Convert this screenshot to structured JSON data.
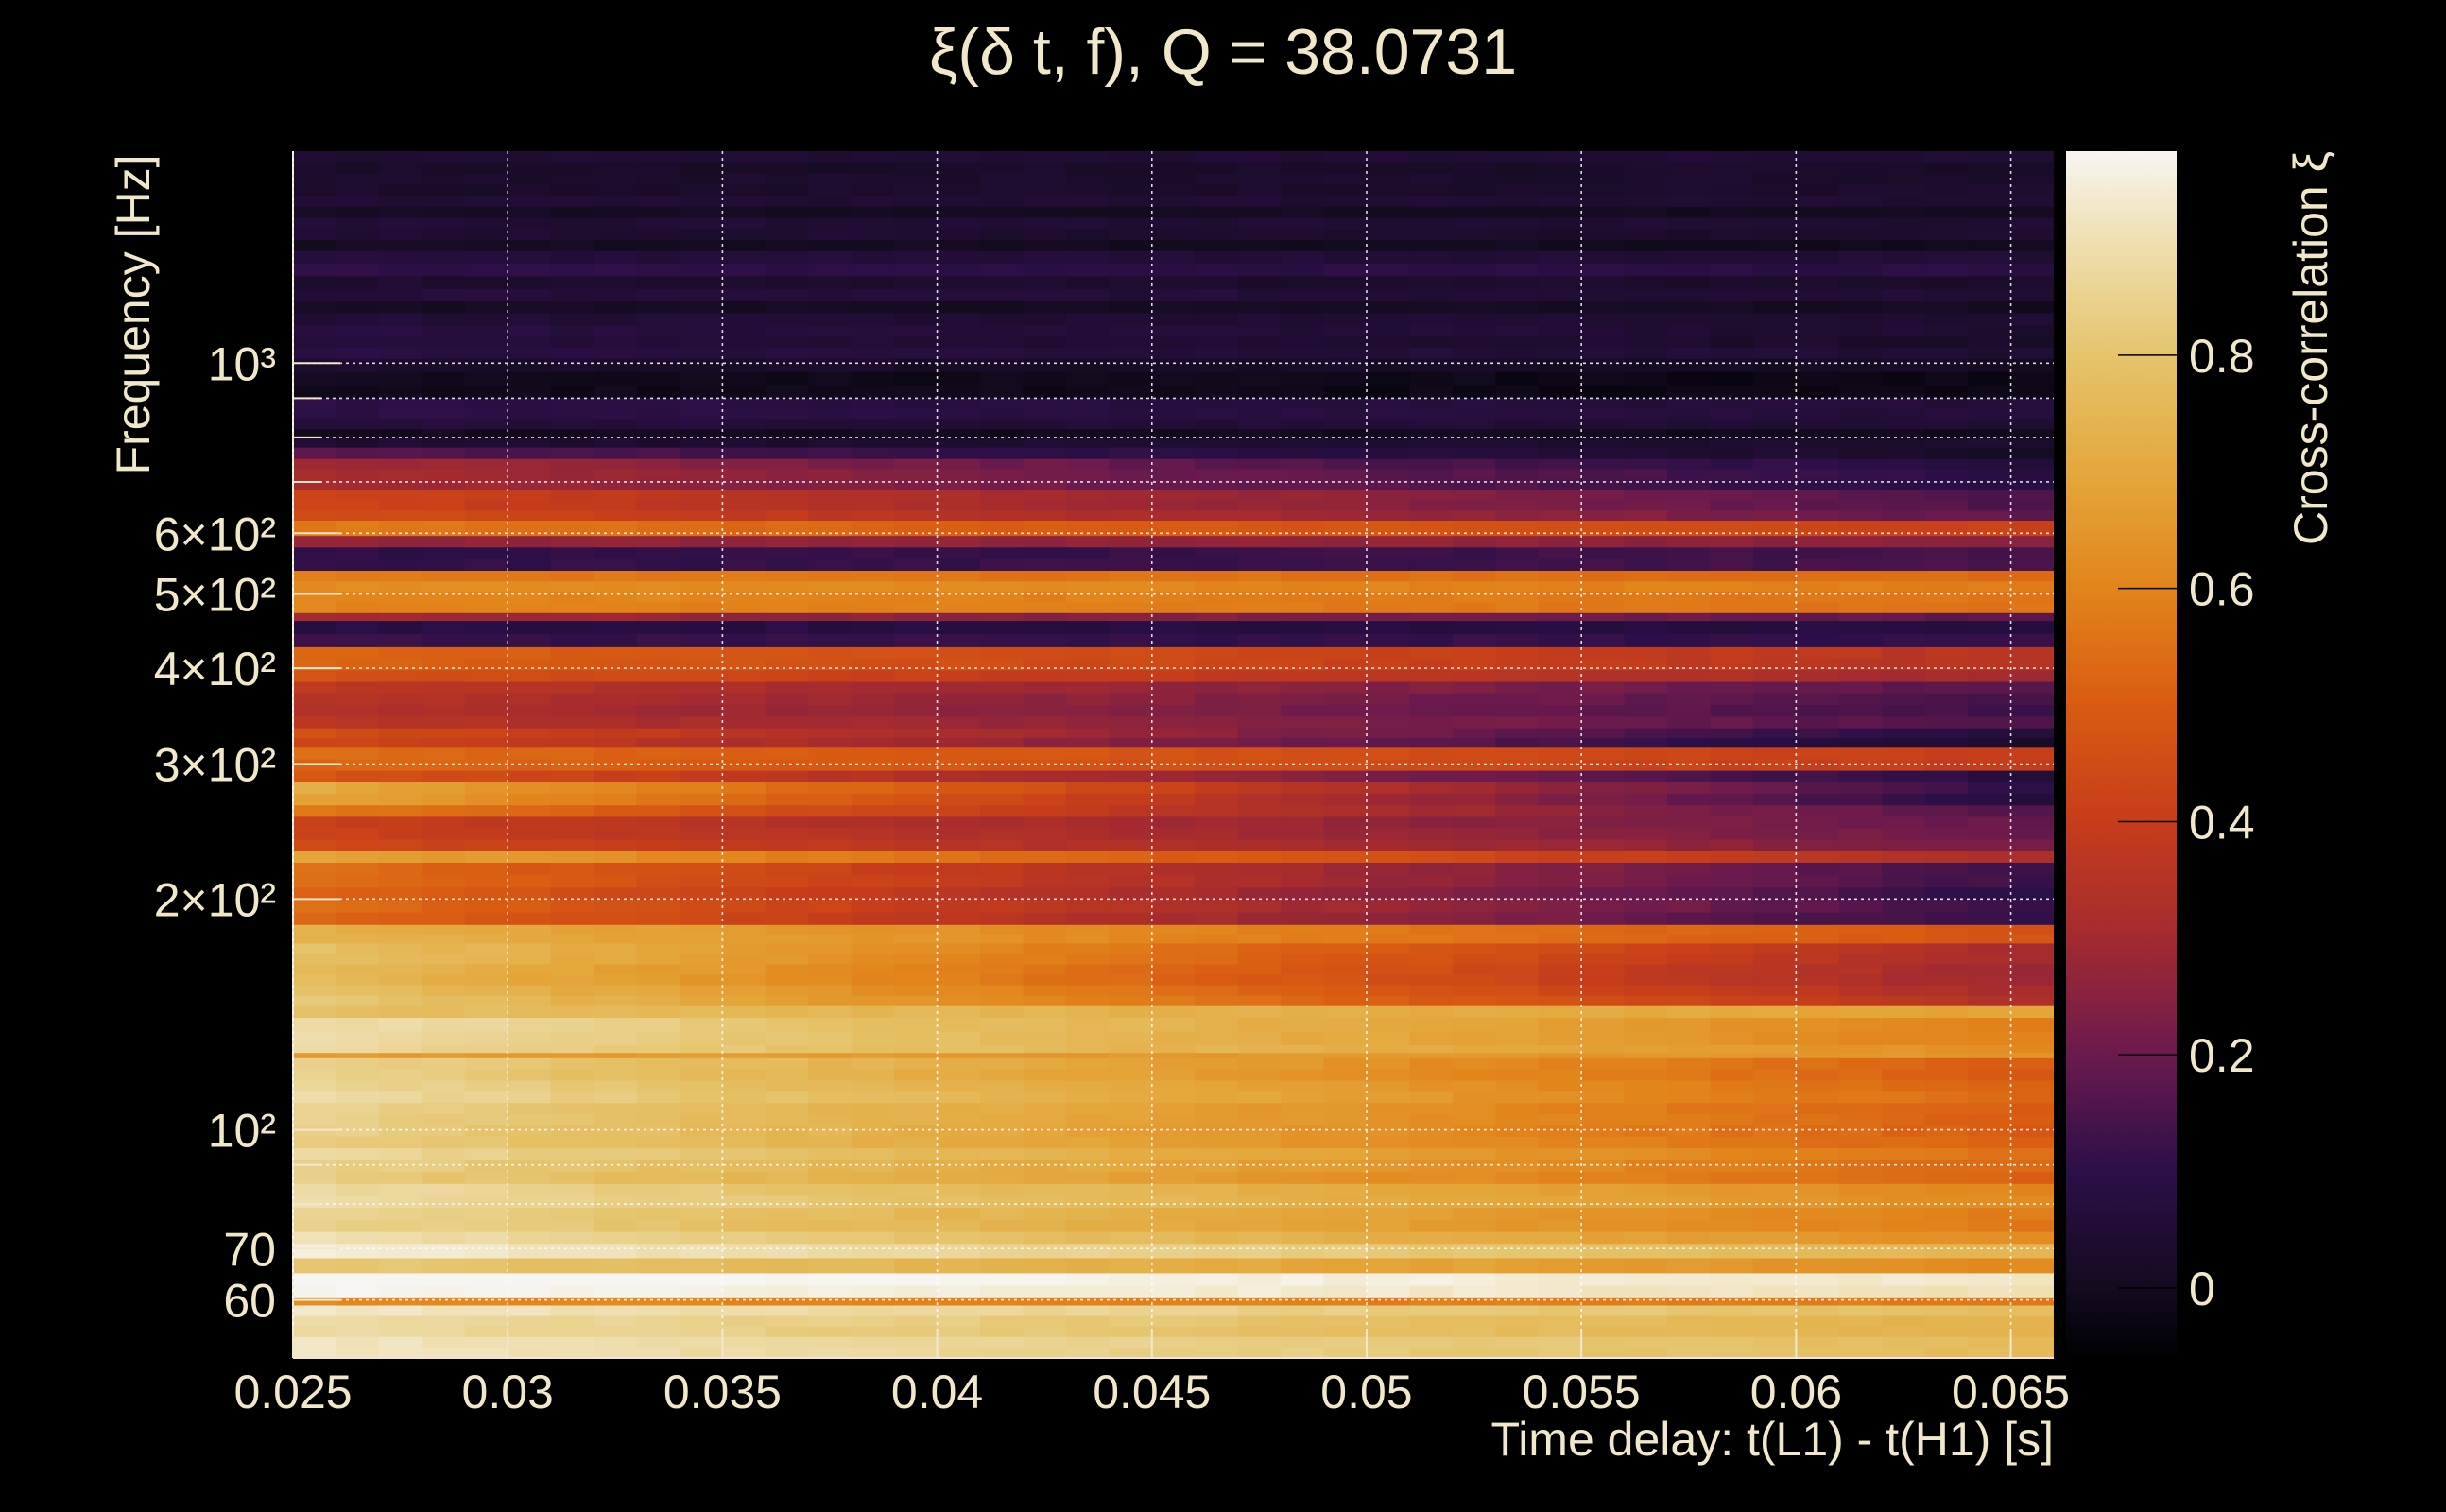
{
  "chart_data": {
    "type": "heatmap",
    "title": "ξ(δ t, f), Q = 38.0731",
    "xlabel": "Time delay: t(L1) - t(H1) [s]",
    "ylabel": "Frequency [Hz]",
    "colorbar_label": "Cross-correlation ξ",
    "xlim": [
      0.025,
      0.066
    ],
    "ylim": [
      50.4,
      1890
    ],
    "yscale": "log",
    "clim": [
      -0.06,
      0.975
    ],
    "grid": true,
    "x_ticks": [
      {
        "value": 0.025,
        "label": "0.025"
      },
      {
        "value": 0.03,
        "label": "0.03"
      },
      {
        "value": 0.035,
        "label": "0.035"
      },
      {
        "value": 0.04,
        "label": "0.04"
      },
      {
        "value": 0.045,
        "label": "0.045"
      },
      {
        "value": 0.05,
        "label": "0.05"
      },
      {
        "value": 0.055,
        "label": "0.055"
      },
      {
        "value": 0.06,
        "label": "0.06"
      },
      {
        "value": 0.065,
        "label": "0.065"
      }
    ],
    "y_ticks": [
      {
        "value": 1000,
        "label": "10³"
      },
      {
        "value": 600,
        "label": "6×10²"
      },
      {
        "value": 500,
        "label": "5×10²"
      },
      {
        "value": 400,
        "label": "4×10²"
      },
      {
        "value": 300,
        "label": "3×10²"
      },
      {
        "value": 200,
        "label": "2×10²"
      },
      {
        "value": 100,
        "label": "10²"
      },
      {
        "value": 70,
        "label": "70"
      },
      {
        "value": 60,
        "label": "60"
      }
    ],
    "y_minor_grid": [
      900,
      800,
      700,
      90,
      80
    ],
    "colorbar_ticks": [
      {
        "value": 0,
        "label": "0"
      },
      {
        "value": 0.2,
        "label": "0.2"
      },
      {
        "value": 0.4,
        "label": "0.4"
      },
      {
        "value": 0.6,
        "label": "0.6"
      },
      {
        "value": 0.8,
        "label": "0.8"
      }
    ],
    "colormap": [
      [
        -0.06,
        "#000003"
      ],
      [
        0.0,
        "#140b1f"
      ],
      [
        0.1,
        "#2c0f48"
      ],
      [
        0.2,
        "#6b1a4d"
      ],
      [
        0.3,
        "#a32a30"
      ],
      [
        0.4,
        "#c63d1b"
      ],
      [
        0.5,
        "#d95b12"
      ],
      [
        0.6,
        "#e2851b"
      ],
      [
        0.7,
        "#e4a83c"
      ],
      [
        0.8,
        "#e5c46c"
      ],
      [
        0.9,
        "#efe0b3"
      ],
      [
        0.975,
        "#f7f5f1"
      ]
    ],
    "n_time_bins": 41,
    "bands_note_fields": [
      "f_low_Hz",
      "f_high_Hz",
      "xi_at_0.025s",
      "xi_at_0.066s"
    ],
    "bands": [
      [
        1600,
        1890,
        0.05,
        0.05
      ],
      [
        1400,
        1600,
        0.03,
        0.02
      ],
      [
        1250,
        1400,
        0.07,
        0.06
      ],
      [
        1120,
        1250,
        0.04,
        0.03
      ],
      [
        1013,
        1120,
        0.09,
        0.05
      ],
      [
        900,
        1013,
        0.02,
        0.0
      ],
      [
        820,
        900,
        0.07,
        0.04
      ],
      [
        776,
        820,
        0.03,
        0.02
      ],
      [
        750,
        776,
        0.2,
        0.05
      ],
      [
        683,
        750,
        0.32,
        0.09
      ],
      [
        623,
        683,
        0.45,
        0.17
      ],
      [
        595,
        623,
        0.6,
        0.44
      ],
      [
        575,
        595,
        0.26,
        0.25
      ],
      [
        536,
        575,
        0.08,
        0.12
      ],
      [
        472,
        536,
        0.6,
        0.56
      ],
      [
        461,
        472,
        0.28,
        0.15
      ],
      [
        426,
        461,
        0.1,
        0.09
      ],
      [
        384,
        426,
        0.5,
        0.33
      ],
      [
        334,
        384,
        0.36,
        0.15
      ],
      [
        315,
        334,
        0.45,
        0.05
      ],
      [
        294,
        315,
        0.56,
        0.42
      ],
      [
        284,
        294,
        0.5,
        0.1
      ],
      [
        265,
        284,
        0.7,
        0.08
      ],
      [
        256,
        265,
        0.6,
        0.18
      ],
      [
        231,
        256,
        0.42,
        0.2
      ],
      [
        223,
        231,
        0.68,
        0.3
      ],
      [
        185,
        223,
        0.55,
        0.12
      ],
      [
        175,
        185,
        0.74,
        0.48
      ],
      [
        145,
        175,
        0.78,
        0.3
      ],
      [
        140,
        145,
        0.78,
        0.68
      ],
      [
        129,
        140,
        0.88,
        0.58
      ],
      [
        126,
        129,
        0.85,
        0.6
      ],
      [
        124,
        126,
        0.66,
        0.64
      ],
      [
        98,
        124,
        0.87,
        0.52
      ],
      [
        85,
        98,
        0.85,
        0.53
      ],
      [
        71,
        85,
        0.88,
        0.6
      ],
      [
        68,
        71,
        0.92,
        0.72
      ],
      [
        65,
        68,
        0.82,
        0.62
      ],
      [
        60.3,
        65,
        0.97,
        0.9
      ],
      [
        59,
        60.3,
        0.6,
        0.55
      ],
      [
        50.4,
        59,
        0.9,
        0.75
      ]
    ]
  }
}
